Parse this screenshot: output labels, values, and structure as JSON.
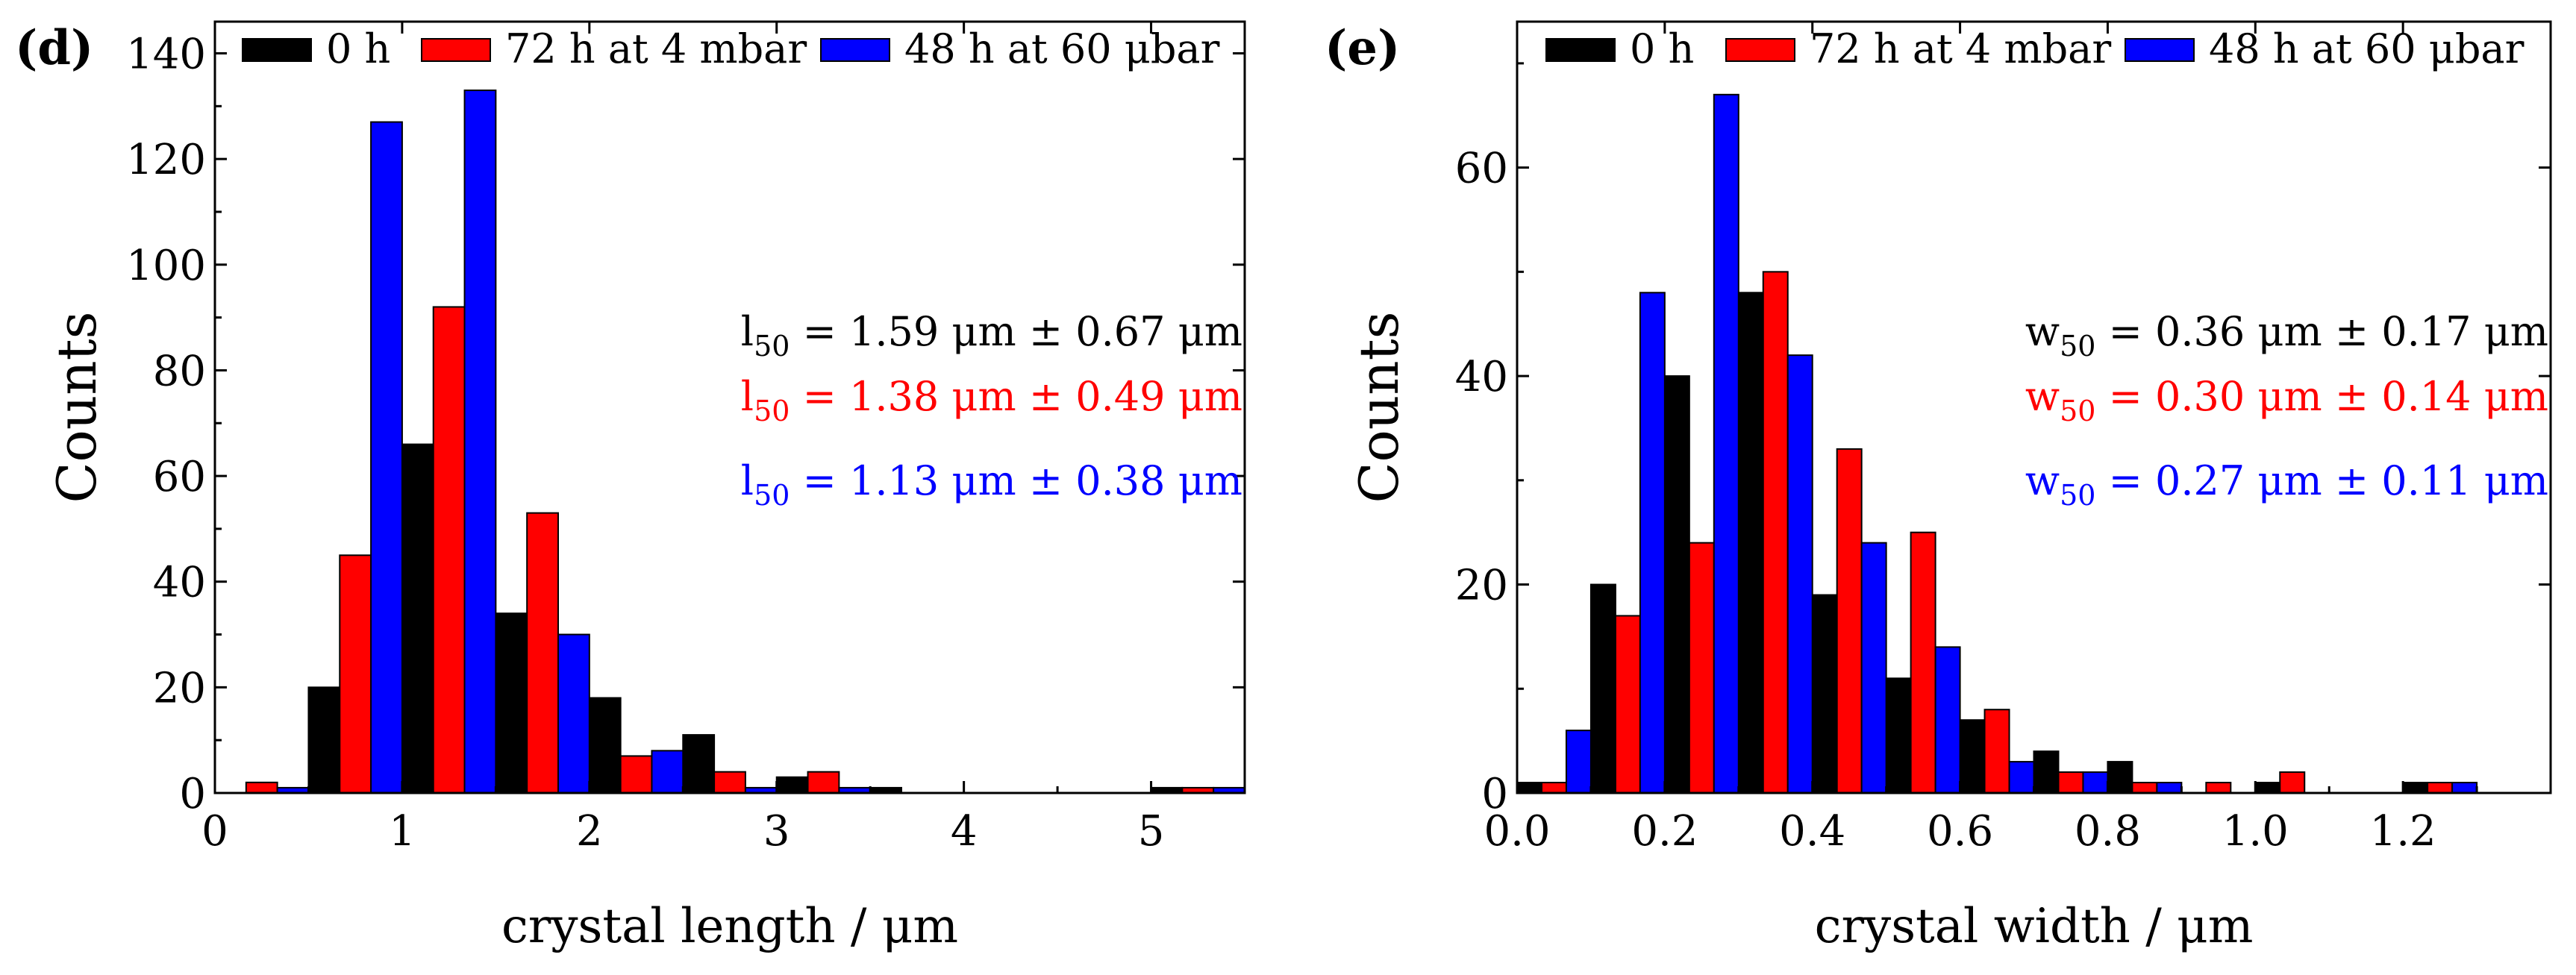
{
  "colors": {
    "series": [
      "#000000",
      "#ff0000",
      "#0000ff"
    ],
    "axis": "#000000"
  },
  "chart_data": [
    {
      "panel_label": "(d)",
      "type": "bar",
      "xlabel": "crystal length / μm",
      "ylabel": "Counts",
      "xlim": [
        0,
        5.5
      ],
      "ylim": [
        0,
        146
      ],
      "xticks": [
        0,
        1,
        2,
        3,
        4,
        5
      ],
      "xtick_labels": [
        "0",
        "1",
        "2",
        "3",
        "4",
        "5"
      ],
      "yticks": [
        0,
        20,
        40,
        60,
        80,
        100,
        120,
        140
      ],
      "ytick_labels": [
        "0",
        "20",
        "40",
        "60",
        "80",
        "100",
        "120",
        "140"
      ],
      "bin_width": 0.5,
      "bin_centers": [
        0.25,
        0.75,
        1.25,
        1.75,
        2.25,
        2.75,
        3.25,
        3.75,
        5.25
      ],
      "legend": {
        "position": "top",
        "entries": [
          "0 h",
          "72 h at 4 mbar",
          "48 h at 60 μbar"
        ]
      },
      "series": [
        {
          "name": "0 h",
          "values": [
            0,
            20,
            66,
            34,
            18,
            11,
            3,
            1,
            1
          ]
        },
        {
          "name": "72 h at 4 mbar",
          "values": [
            2,
            45,
            92,
            53,
            7,
            4,
            4,
            0,
            1
          ]
        },
        {
          "name": "48 h at 60 μbar",
          "values": [
            1,
            127,
            133,
            30,
            8,
            1,
            1,
            0,
            1
          ]
        }
      ],
      "annotations": [
        {
          "symbol": "l",
          "sub": "50",
          "rest": " = 1.59 μm ± 0.67 μm",
          "series": 0
        },
        {
          "symbol": "l",
          "sub": "50",
          "rest": " = 1.38 μm ± 0.49 μm",
          "series": 1
        },
        {
          "symbol": "l",
          "sub": "50",
          "rest": " = 1.13 μm ± 0.38 μm",
          "series": 2
        }
      ]
    },
    {
      "panel_label": "(e)",
      "type": "bar",
      "xlabel": "crystal width / μm",
      "ylabel": "Counts",
      "xlim": [
        0,
        1.4
      ],
      "ylim": [
        0,
        74
      ],
      "xticks": [
        0.0,
        0.2,
        0.4,
        0.6,
        0.8,
        1.0,
        1.2
      ],
      "xtick_labels": [
        "0.0",
        "0.2",
        "0.4",
        "0.6",
        "0.8",
        "1.0",
        "1.2"
      ],
      "yticks": [
        0,
        20,
        40,
        60
      ],
      "ytick_labels": [
        "0",
        "20",
        "40",
        "60"
      ],
      "bin_width": 0.1,
      "bin_centers": [
        0.05,
        0.15,
        0.25,
        0.35,
        0.45,
        0.55,
        0.65,
        0.75,
        0.85,
        0.95,
        1.05,
        1.25
      ],
      "legend": {
        "position": "top",
        "entries": [
          "0 h",
          "72 h at 4 mbar",
          "48 h at 60 μbar"
        ]
      },
      "series": [
        {
          "name": "0 h",
          "values": [
            1,
            20,
            40,
            48,
            19,
            11,
            7,
            4,
            3,
            0,
            1,
            1
          ]
        },
        {
          "name": "72 h at 4 mbar",
          "values": [
            1,
            17,
            24,
            50,
            33,
            25,
            8,
            2,
            1,
            1,
            2,
            1
          ]
        },
        {
          "name": "48 h at 60 μbar",
          "values": [
            6,
            48,
            67,
            42,
            24,
            14,
            3,
            2,
            1,
            0,
            0,
            1
          ]
        }
      ],
      "annotations": [
        {
          "symbol": "w",
          "sub": "50",
          "rest": " = 0.36 μm ± 0.17 μm",
          "series": 0
        },
        {
          "symbol": "w",
          "sub": "50",
          "rest": " = 0.30 μm ± 0.14 μm",
          "series": 1
        },
        {
          "symbol": "w",
          "sub": "50",
          "rest": " = 0.27 μm ± 0.11 μm",
          "series": 2
        }
      ]
    }
  ]
}
